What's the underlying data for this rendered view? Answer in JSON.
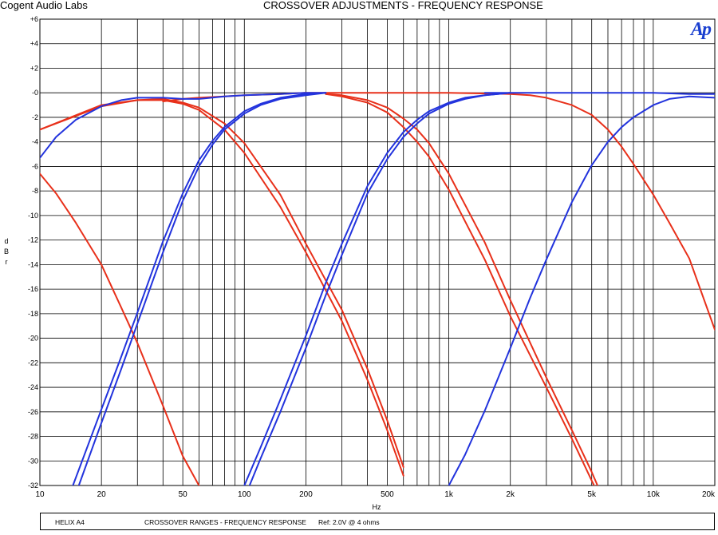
{
  "header": {
    "company": "Cogent Audio Labs",
    "title": "CROSSOVER ADJUSTMENTS  -  FREQUENCY RESPONSE",
    "logo_text": "Ap"
  },
  "footer": {
    "device": "HELIX A4",
    "description": "CROSSOVER RANGES - FREQUENCY RESPONSE",
    "reference": "Ref: 2.0V @ 4 ohms"
  },
  "colors": {
    "red": "#e8301a",
    "blue": "#2233dd",
    "grid": "#000000"
  },
  "chart_data": {
    "type": "line",
    "title": "CROSSOVER ADJUSTMENTS  -  FREQUENCY RESPONSE",
    "xlabel": "Hz",
    "ylabel": "d B r",
    "x_scale": "log",
    "xlim": [
      10,
      20000
    ],
    "ylim": [
      -32,
      6
    ],
    "grid": true,
    "x_ticks": [
      10,
      20,
      50,
      100,
      200,
      500,
      1000,
      2000,
      5000,
      10000,
      20000
    ],
    "x_tick_labels": [
      "10",
      "20",
      "50",
      "100",
      "200",
      "500",
      "1k",
      "2k",
      "5k",
      "10k",
      "20k"
    ],
    "y_ticks": [
      6,
      4,
      2,
      0,
      -2,
      -4,
      -6,
      -8,
      -10,
      -12,
      -14,
      -16,
      -18,
      -20,
      -22,
      -24,
      -26,
      -28,
      -30,
      -32
    ],
    "y_tick_labels": [
      "+6",
      "+4",
      "+2",
      "-0",
      "-2",
      "-4",
      "-6",
      "-8",
      "-10",
      "-12",
      "-14",
      "-16",
      "-18",
      "-20",
      "-22",
      "-24",
      "-26",
      "-28",
      "-30",
      "-32"
    ],
    "series": [
      {
        "color": "red",
        "x": [
          10,
          20,
          30,
          40,
          50,
          60,
          80,
          100,
          150,
          200,
          300,
          400,
          500,
          600
        ],
        "y": [
          -3.0,
          -1.1,
          -0.6,
          -0.6,
          -0.9,
          -1.4,
          -3.0,
          -4.9,
          -9.3,
          -13.0,
          -18.6,
          -23.4,
          -27.5,
          -31.2
        ]
      },
      {
        "color": "red",
        "x": [
          10,
          20,
          30,
          40,
          50,
          60,
          80,
          100,
          150,
          200,
          300,
          400,
          500,
          600
        ],
        "y": [
          -3.0,
          -1.0,
          -0.6,
          -0.5,
          -0.8,
          -1.2,
          -2.5,
          -4.1,
          -8.3,
          -12.3,
          -17.7,
          -22.5,
          -26.7,
          -30.5
        ]
      },
      {
        "color": "red",
        "x": [
          10,
          12,
          15,
          20,
          25,
          30,
          40,
          50,
          60,
          65
        ],
        "y": [
          -6.6,
          -8.2,
          -10.6,
          -14.0,
          -17.5,
          -20.4,
          -25.5,
          -29.6,
          -32.0,
          -32.5
        ]
      },
      {
        "color": "red",
        "x": [
          40,
          50,
          60,
          80,
          100,
          150,
          200,
          300
        ],
        "y": [
          -0.7,
          -0.5,
          -0.4,
          -0.3,
          -0.2,
          -0.1,
          0.0,
          0.0
        ]
      },
      {
        "color": "red",
        "x": [
          250,
          300,
          400,
          500,
          600,
          700,
          800,
          1000,
          1500,
          2000,
          3000,
          4000,
          5000,
          5500
        ],
        "y": [
          -0.1,
          -0.3,
          -0.8,
          -1.6,
          -2.8,
          -4.0,
          -5.2,
          -7.9,
          -13.6,
          -18.2,
          -24.0,
          -28.2,
          -31.6,
          -33.0
        ]
      },
      {
        "color": "red",
        "x": [
          250,
          300,
          400,
          500,
          600,
          700,
          800,
          1000,
          1500,
          2000,
          3000,
          4000,
          5000,
          5500
        ],
        "y": [
          -0.1,
          -0.2,
          -0.6,
          -1.2,
          -2.1,
          -3.0,
          -4.1,
          -6.6,
          -12.2,
          -16.9,
          -23.2,
          -27.5,
          -30.9,
          -32.5
        ]
      },
      {
        "color": "red",
        "x": [
          300,
          500,
          1000,
          2000,
          2500,
          3000,
          4000,
          5000,
          6000,
          7000,
          8000,
          10000,
          12000,
          15000,
          20000
        ],
        "y": [
          0.0,
          0.0,
          0.0,
          -0.1,
          -0.2,
          -0.4,
          -1.0,
          -1.8,
          -3.0,
          -4.4,
          -5.8,
          -8.3,
          -10.6,
          -13.5,
          -19.3
        ]
      },
      {
        "color": "blue",
        "x": [
          10,
          12,
          15,
          20,
          25,
          30,
          40,
          50,
          60,
          80,
          100,
          150,
          200,
          250
        ],
        "y": [
          -5.3,
          -3.6,
          -2.2,
          -1.1,
          -0.6,
          -0.4,
          -0.4,
          -0.5,
          -0.5,
          -0.3,
          -0.2,
          -0.1,
          0.0,
          0.0
        ]
      },
      {
        "color": "blue",
        "x": [
          15.5,
          20,
          25,
          30,
          40,
          50,
          60,
          70,
          80,
          100,
          120,
          150,
          200,
          250
        ],
        "y": [
          -32.0,
          -26.9,
          -22.5,
          -18.8,
          -13.0,
          -8.8,
          -6.0,
          -4.2,
          -3.0,
          -1.7,
          -1.0,
          -0.5,
          -0.2,
          0.0
        ]
      },
      {
        "color": "blue",
        "x": [
          14.5,
          20,
          25,
          30,
          40,
          50,
          60,
          70,
          80,
          100,
          120,
          150,
          200,
          250
        ],
        "y": [
          -32.0,
          -25.8,
          -21.5,
          -17.9,
          -12.1,
          -8.2,
          -5.5,
          -3.9,
          -2.8,
          -1.5,
          -0.9,
          -0.4,
          -0.1,
          0.0
        ]
      },
      {
        "color": "blue",
        "x": [
          100,
          120,
          150,
          200,
          250,
          300,
          400,
          500,
          600,
          700,
          800,
          1000,
          1200,
          1500,
          2000
        ],
        "y": [
          -32.0,
          -28.9,
          -25.0,
          -19.8,
          -15.5,
          -12.3,
          -7.6,
          -4.9,
          -3.2,
          -2.2,
          -1.5,
          -0.8,
          -0.4,
          -0.2,
          0.0
        ]
      },
      {
        "color": "blue",
        "x": [
          106,
          120,
          150,
          200,
          250,
          300,
          400,
          500,
          600,
          700,
          800,
          1000,
          1200,
          1500,
          2000
        ],
        "y": [
          -32.0,
          -29.8,
          -26.0,
          -20.8,
          -16.5,
          -13.2,
          -8.2,
          -5.4,
          -3.6,
          -2.5,
          -1.7,
          -0.9,
          -0.5,
          -0.2,
          0.0
        ]
      },
      {
        "color": "blue",
        "x": [
          1000,
          1200,
          1500,
          2000,
          2500,
          3000,
          4000,
          5000,
          6000,
          7000,
          8000,
          10000,
          12000,
          15000,
          20000
        ],
        "y": [
          -32.0,
          -29.5,
          -25.9,
          -20.8,
          -16.7,
          -13.6,
          -8.9,
          -5.9,
          -4.0,
          -2.8,
          -2.0,
          -1.0,
          -0.5,
          -0.3,
          -0.4
        ]
      },
      {
        "color": "blue",
        "x": [
          1500,
          2000,
          5000,
          10000,
          15000,
          20000
        ],
        "y": [
          0.0,
          0.0,
          0.0,
          0.0,
          -0.1,
          -0.1
        ]
      }
    ]
  }
}
